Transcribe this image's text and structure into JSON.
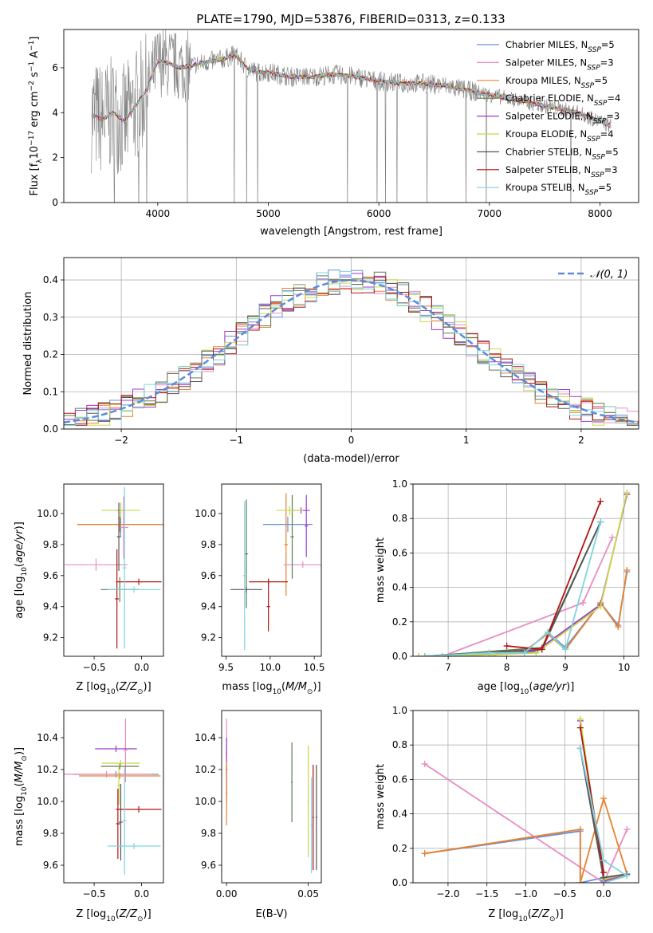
{
  "figure_title": "PLATE=1790, MJD=53876, FIBERID=0313, z=0.133",
  "palette": [
    "#6a8fd6",
    "#e88cc2",
    "#e8822e",
    "#5f7f4f",
    "#9b3bc9",
    "#c8d84a",
    "#555555",
    "#b01515",
    "#7fd3e0"
  ],
  "chart_data": [
    {
      "id": "spectrum",
      "type": "line",
      "xlabel": "wavelength [Angstrom, rest frame]",
      "ylabel": "Flux [f",
      "xlim": [
        3150,
        8350
      ],
      "ylim": [
        0,
        7.7
      ],
      "xticks": [
        4000,
        5000,
        6000,
        7000,
        8000
      ],
      "yticks": [
        0,
        2,
        4,
        6
      ],
      "legend_position": "right",
      "data_points": [
        [
          3400,
          3.9
        ],
        [
          3500,
          3.7
        ],
        [
          3600,
          4.0
        ],
        [
          3700,
          3.6
        ],
        [
          3800,
          4.3
        ],
        [
          3900,
          5.0
        ],
        [
          4000,
          6.3
        ],
        [
          4100,
          6.2
        ],
        [
          4200,
          6.0
        ],
        [
          4300,
          6.1
        ],
        [
          4400,
          6.2
        ],
        [
          4500,
          6.3
        ],
        [
          4600,
          6.4
        ],
        [
          4700,
          6.6
        ],
        [
          4800,
          6.0
        ],
        [
          4900,
          5.8
        ],
        [
          5000,
          5.8
        ],
        [
          5200,
          5.6
        ],
        [
          5400,
          5.6
        ],
        [
          5600,
          5.7
        ],
        [
          5800,
          5.6
        ],
        [
          6000,
          5.4
        ],
        [
          6200,
          5.3
        ],
        [
          6400,
          5.3
        ],
        [
          6600,
          5.2
        ],
        [
          6800,
          5.0
        ],
        [
          7000,
          4.8
        ],
        [
          7200,
          4.6
        ],
        [
          7400,
          4.4
        ],
        [
          7600,
          4.2
        ],
        [
          7800,
          4.0
        ],
        [
          8000,
          3.6
        ],
        [
          8100,
          3.4
        ]
      ],
      "series": [
        {
          "name": "Chabrier MILES",
          "nssp": "5"
        },
        {
          "name": "Salpeter MILES",
          "nssp": "3"
        },
        {
          "name": "Kroupa MILES",
          "nssp": "5"
        },
        {
          "name": "Chabrier ELODIE",
          "nssp": "4"
        },
        {
          "name": "Salpeter ELODIE",
          "nssp": "3"
        },
        {
          "name": "Kroupa ELODIE",
          "nssp": "4"
        },
        {
          "name": "Chabrier STELIB",
          "nssp": "5"
        },
        {
          "name": "Salpeter STELIB",
          "nssp": "3"
        },
        {
          "name": "Kroupa STELIB",
          "nssp": "5"
        }
      ]
    },
    {
      "id": "residuals",
      "type": "histogram",
      "xlabel": "(data-model)/error",
      "ylabel": "Normed distribution",
      "xlim": [
        -2.5,
        2.5
      ],
      "ylim": [
        0,
        0.46
      ],
      "xticks": [
        -2,
        -1,
        0,
        1,
        2
      ],
      "yticks": [
        0.0,
        0.1,
        0.2,
        0.3,
        0.4
      ],
      "grid": true,
      "bin_width": 0.1,
      "legend": [
        "𝒩(0, 1)"
      ],
      "legend_position": "top-right",
      "reference_curve": "normal(0,1)"
    },
    {
      "id": "age_vs_Z",
      "type": "errorbar",
      "xlabel": "Z [log",
      "ylabel": "age  [log",
      "xlim": [
        -0.82,
        0.23
      ],
      "ylim": [
        9.08,
        10.19
      ],
      "xticks": [
        -0.5,
        0.0
      ],
      "yticks": [
        9.2,
        9.4,
        9.6,
        9.8,
        10.0
      ],
      "points": [
        {
          "c": 0,
          "x": -0.22,
          "xerr": 0.45,
          "y": 9.93,
          "yerr": 0.08
        },
        {
          "c": 1,
          "x": -0.48,
          "xerr": 0.33,
          "y": 9.67,
          "yerr": 0.04
        },
        {
          "c": 1,
          "x": -0.19,
          "xerr": 0.05,
          "y": 9.91,
          "yerr": 0.2
        },
        {
          "c": 2,
          "x": -0.23,
          "xerr": 0.45,
          "y": 9.93,
          "yerr": 0.05
        },
        {
          "c": 3,
          "x": -0.23,
          "xerr": 0.2,
          "y": 9.51,
          "yerr": 0.08
        },
        {
          "c": 4,
          "x": -0.22,
          "xerr": 0.05,
          "y": 10.02,
          "yerr": 0.05
        },
        {
          "c": 5,
          "x": -0.22,
          "xerr": 0.2,
          "y": 10.02,
          "yerr": 0.05
        },
        {
          "c": 6,
          "x": -0.24,
          "xerr": 0.02,
          "y": 9.85,
          "yerr": 0.22
        },
        {
          "c": 7,
          "x": -0.26,
          "xerr": 0.02,
          "y": 9.45,
          "yerr": 0.32
        },
        {
          "c": 7,
          "x": -0.03,
          "xerr": 0.24,
          "y": 9.56,
          "yerr": 0.02
        },
        {
          "c": 8,
          "x": -0.18,
          "xerr": 0.02,
          "y": 9.65,
          "yerr": 0.52
        },
        {
          "c": 8,
          "x": -0.08,
          "xerr": 0.28,
          "y": 9.51,
          "yerr": 0.02
        }
      ]
    },
    {
      "id": "age_vs_mass",
      "type": "errorbar",
      "xlabel": "mass [log",
      "ylabel": "",
      "xlim": [
        9.45,
        10.58
      ],
      "ylim": [
        9.08,
        10.19
      ],
      "xticks": [
        9.5,
        10.0,
        10.5
      ],
      "yticks": [
        9.2,
        9.4,
        9.6,
        9.8,
        10.0
      ],
      "points": [
        {
          "c": 0,
          "x": 10.2,
          "xerr": 0.28,
          "y": 9.93,
          "yerr": 0.05
        },
        {
          "c": 1,
          "x": 10.37,
          "xerr": 0.22,
          "y": 9.67,
          "yerr": 0.02
        },
        {
          "c": 2,
          "x": 10.18,
          "xerr": 0.02,
          "y": 9.8,
          "yerr": 0.33
        },
        {
          "c": 3,
          "x": 9.73,
          "xerr": 0.02,
          "y": 9.74,
          "yerr": 0.35
        },
        {
          "c": 3,
          "x": 10.25,
          "xerr": 0.02,
          "y": 9.85,
          "yerr": 0.27
        },
        {
          "c": 4,
          "x": 10.35,
          "xerr": 0.1,
          "y": 10.02,
          "yerr": 0.02
        },
        {
          "c": 4,
          "x": 10.41,
          "xerr": 0.02,
          "y": 9.92,
          "yerr": 0.2
        },
        {
          "c": 5,
          "x": 10.22,
          "xerr": 0.15,
          "y": 10.02,
          "yerr": 0.03
        },
        {
          "c": 6,
          "x": 9.73,
          "xerr": 0.18,
          "y": 9.51,
          "yerr": 0.02
        },
        {
          "c": 7,
          "x": 9.98,
          "xerr": 0.22,
          "y": 9.56,
          "yerr": 0.02
        },
        {
          "c": 7,
          "x": 9.98,
          "xerr": 0.02,
          "y": 9.4,
          "yerr": 0.16
        },
        {
          "c": 8,
          "x": 9.71,
          "xerr": 0.02,
          "y": 9.6,
          "yerr": 0.48
        }
      ]
    },
    {
      "id": "weight_vs_age",
      "type": "line",
      "xlabel": "age  [log",
      "ylabel": "mass weight",
      "xlim": [
        6.4,
        10.25
      ],
      "ylim": [
        0,
        1.0
      ],
      "xticks": [
        7,
        8,
        9,
        10
      ],
      "yticks": [
        0.0,
        0.2,
        0.4,
        0.6,
        0.8,
        1.0
      ],
      "grid": true,
      "series": [
        {
          "c": 0,
          "x": [
            6.6,
            7.7,
            8.3,
            8.7,
            9.0,
            9.6,
            9.9,
            10.05
          ],
          "y": [
            0.0,
            0.02,
            0.02,
            0.14,
            0.05,
            0.31,
            0.18,
            0.49
          ]
        },
        {
          "c": 1,
          "x": [
            6.9,
            9.3,
            9.8
          ],
          "y": [
            0.0,
            0.31,
            0.69
          ]
        },
        {
          "c": 2,
          "x": [
            6.6,
            7.7,
            8.3,
            8.7,
            9.0,
            9.6,
            9.9,
            10.05
          ],
          "y": [
            0.0,
            0.02,
            0.03,
            0.13,
            0.04,
            0.31,
            0.17,
            0.5
          ]
        },
        {
          "c": 3,
          "x": [
            6.6,
            8.6,
            9.6
          ],
          "y": [
            0.0,
            0.05,
            0.78
          ]
        },
        {
          "c": 4,
          "x": [
            6.5,
            7.8,
            8.5,
            9.6,
            10.05
          ],
          "y": [
            0.0,
            0.01,
            0.03,
            0.3,
            0.94
          ]
        },
        {
          "c": 5,
          "x": [
            6.5,
            7.8,
            8.5,
            9.6,
            10.05
          ],
          "y": [
            0.0,
            0.01,
            0.02,
            0.29,
            0.95
          ]
        },
        {
          "c": 6,
          "x": [
            6.6,
            8.6,
            9.6
          ],
          "y": [
            0.0,
            0.04,
            0.78
          ]
        },
        {
          "c": 7,
          "x": [
            8.0,
            8.6,
            9.6
          ],
          "y": [
            0.06,
            0.04,
            0.9
          ]
        },
        {
          "c": 8,
          "x": [
            6.6,
            7.7,
            8.3,
            8.7,
            9.0,
            9.6
          ],
          "y": [
            0.0,
            0.02,
            0.02,
            0.14,
            0.04,
            0.78
          ]
        }
      ]
    },
    {
      "id": "mass_vs_Z",
      "type": "errorbar",
      "xlabel": "Z [log",
      "ylabel": "mass [log",
      "xlim": [
        -0.82,
        0.23
      ],
      "ylim": [
        9.49,
        10.57
      ],
      "xticks": [
        -0.5,
        0.0
      ],
      "yticks": [
        9.6,
        9.8,
        10.0,
        10.2,
        10.4
      ],
      "points": [
        {
          "c": 0,
          "x": -0.27,
          "xerr": 0.45,
          "y": 10.17,
          "yerr": 0.02
        },
        {
          "c": 1,
          "x": -0.37,
          "xerr": 0.47,
          "y": 10.17,
          "yerr": 0.02
        },
        {
          "c": 1,
          "x": -0.17,
          "xerr": 0.02,
          "y": 10.32,
          "yerr": 0.2
        },
        {
          "c": 2,
          "x": -0.23,
          "xerr": 0.43,
          "y": 10.16,
          "yerr": 0.02
        },
        {
          "c": 3,
          "x": -0.23,
          "xerr": 0.2,
          "y": 10.22,
          "yerr": 0.02
        },
        {
          "c": 4,
          "x": -0.27,
          "xerr": 0.22,
          "y": 10.33,
          "yerr": 0.02
        },
        {
          "c": 5,
          "x": -0.22,
          "xerr": 0.2,
          "y": 10.24,
          "yerr": 0.02
        },
        {
          "c": 5,
          "x": -0.24,
          "xerr": 0.02,
          "y": 10.1,
          "yerr": 0.12
        },
        {
          "c": 6,
          "x": -0.22,
          "xerr": 0.02,
          "y": 9.87,
          "yerr": 0.24
        },
        {
          "c": 7,
          "x": -0.03,
          "xerr": 0.24,
          "y": 9.95,
          "yerr": 0.02
        },
        {
          "c": 7,
          "x": -0.25,
          "xerr": 0.02,
          "y": 9.86,
          "yerr": 0.22
        },
        {
          "c": 8,
          "x": -0.18,
          "xerr": 0.02,
          "y": 9.88,
          "yerr": 0.34
        },
        {
          "c": 8,
          "x": -0.08,
          "xerr": 0.28,
          "y": 9.72,
          "yerr": 0.02
        }
      ]
    },
    {
      "id": "mass_vs_ebv",
      "type": "errorbar",
      "xlabel": "E(B-V)",
      "ylabel": "",
      "xlim": [
        -0.003,
        0.058
      ],
      "ylim": [
        9.49,
        10.57
      ],
      "xticks": [
        0.0,
        0.05
      ],
      "yticks": [
        9.6,
        9.8,
        10.0,
        10.2,
        10.4
      ],
      "points": [
        {
          "c": 1,
          "x": 0.0,
          "xerr": 0.0005,
          "y": 10.3,
          "yerr": 0.22
        },
        {
          "c": 4,
          "x": 0.0,
          "xerr": 0.0005,
          "y": 10.2,
          "yerr": 0.2
        },
        {
          "c": 2,
          "x": 0.0,
          "xerr": 0.0005,
          "y": 10.05,
          "yerr": 0.2
        },
        {
          "c": 3,
          "x": 0.04,
          "xerr": 0.0005,
          "y": 10.12,
          "yerr": 0.25
        },
        {
          "c": 5,
          "x": 0.05,
          "xerr": 0.0005,
          "y": 10.0,
          "yerr": 0.35
        },
        {
          "c": 8,
          "x": 0.052,
          "xerr": 0.0005,
          "y": 9.85,
          "yerr": 0.3
        },
        {
          "c": 7,
          "x": 0.053,
          "xerr": 0.0005,
          "y": 9.9,
          "yerr": 0.33
        },
        {
          "c": 6,
          "x": 0.055,
          "xerr": 0.0005,
          "y": 9.9,
          "yerr": 0.33
        }
      ]
    },
    {
      "id": "weight_vs_Z",
      "type": "line",
      "xlabel": "Z [log",
      "ylabel": "mass weight",
      "xlim": [
        -2.45,
        0.45
      ],
      "ylim": [
        0,
        1.0
      ],
      "xticks": [
        -2.0,
        -1.5,
        -1.0,
        -0.5,
        0.0
      ],
      "yticks": [
        0.0,
        0.2,
        0.4,
        0.6,
        0.8,
        1.0
      ],
      "grid": true,
      "series": [
        {
          "c": 0,
          "x": [
            -2.3,
            -0.3,
            -0.3,
            0.0,
            0.3
          ],
          "y": [
            0.17,
            0.3,
            0.0,
            0.03,
            0.05
          ]
        },
        {
          "c": 1,
          "x": [
            -2.3,
            0.0,
            0.3
          ],
          "y": [
            0.69,
            0.0,
            0.31
          ]
        },
        {
          "c": 2,
          "x": [
            -2.3,
            -0.3,
            -0.3,
            0.0,
            0.3,
            0.0
          ],
          "y": [
            0.17,
            0.31,
            0.0,
            0.49,
            0.05,
            0.0
          ]
        },
        {
          "c": 3,
          "x": [
            -0.3,
            0.0,
            0.3
          ],
          "y": [
            0.78,
            0.02,
            0.05
          ]
        },
        {
          "c": 4,
          "x": [
            -0.3,
            0.0,
            0.3
          ],
          "y": [
            0.94,
            0.01,
            0.05
          ]
        },
        {
          "c": 5,
          "x": [
            -0.3,
            0.0,
            0.3
          ],
          "y": [
            0.95,
            0.02,
            0.05
          ]
        },
        {
          "c": 6,
          "x": [
            -0.3,
            0.0,
            0.3
          ],
          "y": [
            0.78,
            0.03,
            0.05
          ]
        },
        {
          "c": 7,
          "x": [
            -0.3,
            0.0
          ],
          "y": [
            0.9,
            0.06
          ]
        },
        {
          "c": 8,
          "x": [
            -0.3,
            0.0,
            0.3,
            0.0
          ],
          "y": [
            0.78,
            0.13,
            0.04,
            0.0
          ]
        }
      ]
    }
  ]
}
